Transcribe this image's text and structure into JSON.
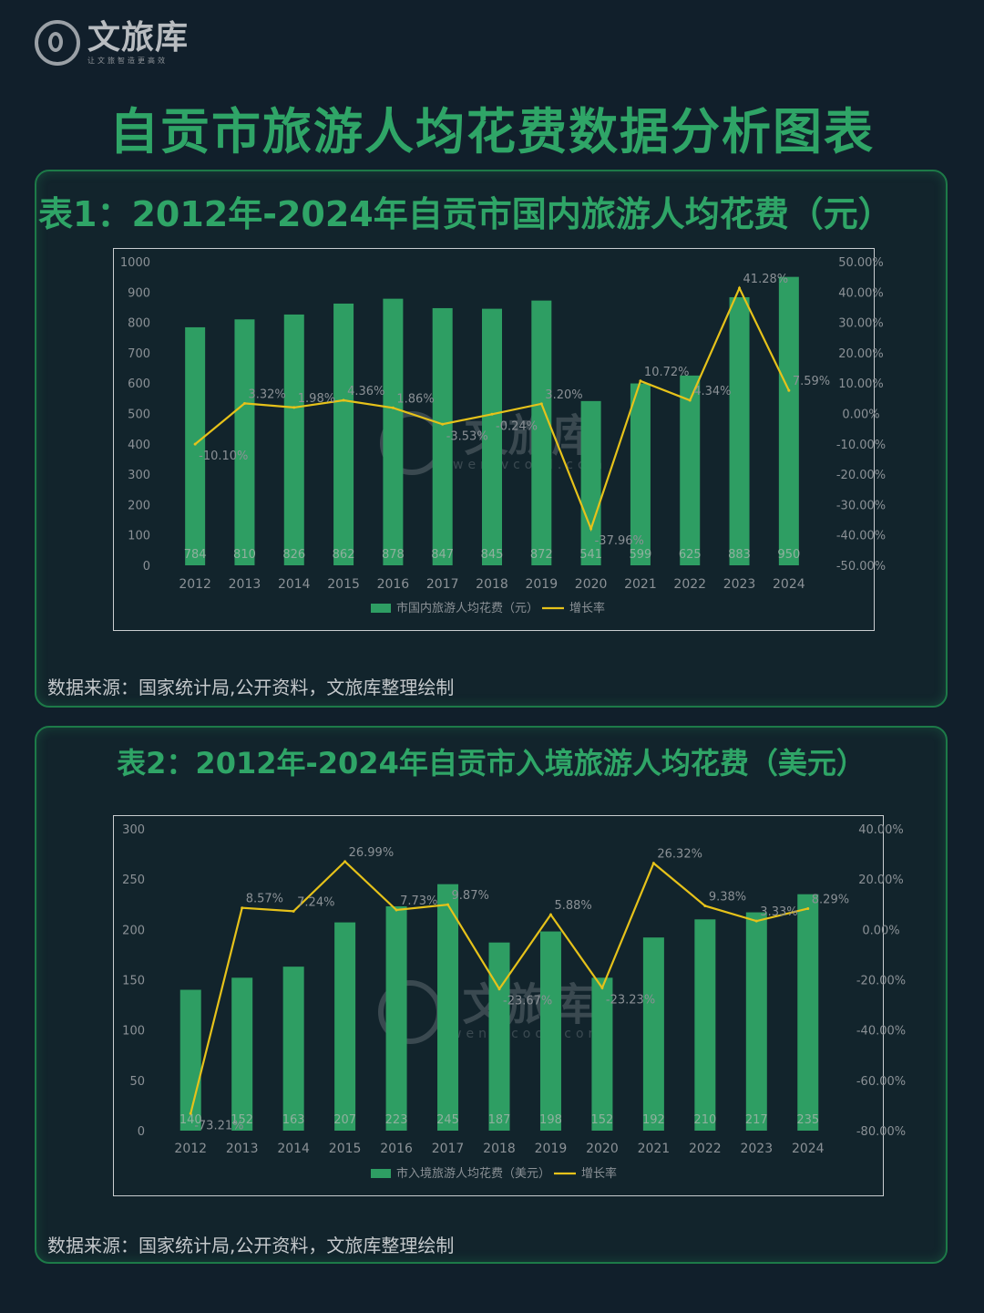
{
  "brand": {
    "name": "文旅库",
    "tagline": "让文旅智造更高效",
    "watermark_name": "文旅库",
    "watermark_url": "wenlvcool.com"
  },
  "page_title": "自贡市旅游人均花费数据分析图表",
  "colors": {
    "background": "#111f2b",
    "accent": "#2fa567",
    "bar": "#2e9e63",
    "line": "#e6c21a",
    "text_muted": "#8b9196"
  },
  "charts": [
    {
      "title": "表1：2012年-2024年自贡市国内旅游人均花费（元）",
      "source": "数据来源：国家统计局,公开资料，文旅库整理绘制",
      "chart_data": {
        "type": "bar",
        "categories": [
          "2012",
          "2013",
          "2014",
          "2015",
          "2016",
          "2017",
          "2018",
          "2019",
          "2020",
          "2021",
          "2022",
          "2023",
          "2024"
        ],
        "series": [
          {
            "name": "市国内旅游人均花费（元）",
            "type": "bar",
            "axis": "left",
            "values": [
              784,
              810,
              826,
              862,
              878,
              847,
              845,
              872,
              541,
              599,
              625,
              883,
              950
            ],
            "labels": [
              "784",
              "810",
              "826",
              "862",
              "878",
              "847",
              "845",
              "872",
              "541",
              "599",
              "625",
              "883",
              "950"
            ]
          },
          {
            "name": "增长率",
            "type": "line",
            "axis": "right",
            "values": [
              -10.1,
              3.32,
              1.98,
              4.36,
              1.86,
              -3.53,
              -0.24,
              3.2,
              -37.96,
              10.72,
              4.34,
              41.28,
              7.59
            ],
            "labels": [
              "-10.10%",
              "3.32%",
              "1.98%",
              "4.36%",
              "1.86%",
              "-3.53%",
              "-0.24%",
              "3.20%",
              "-37.96%",
              "10.72%",
              "4.34%",
              "41.28%",
              "7.59%"
            ]
          }
        ],
        "y_left": {
          "min": 0,
          "max": 1000,
          "ticks": [
            "0",
            "100",
            "200",
            "300",
            "400",
            "500",
            "600",
            "700",
            "800",
            "900",
            "1000"
          ]
        },
        "y_right": {
          "min": -50,
          "max": 50,
          "ticks": [
            "-50.00%",
            "-40.00%",
            "-30.00%",
            "-20.00%",
            "-10.00%",
            "0.00%",
            "10.00%",
            "20.00%",
            "30.00%",
            "40.00%",
            "50.00%"
          ]
        },
        "grid": false,
        "legend": "bottom"
      }
    },
    {
      "title": "表2：2012年-2024年自贡市入境旅游人均花费（美元）",
      "source": "数据来源：国家统计局,公开资料，文旅库整理绘制",
      "chart_data": {
        "type": "bar",
        "categories": [
          "2012",
          "2013",
          "2014",
          "2015",
          "2016",
          "2017",
          "2018",
          "2019",
          "2020",
          "2021",
          "2022",
          "2023",
          "2024"
        ],
        "series": [
          {
            "name": "市入境旅游人均花费（美元）",
            "type": "bar",
            "axis": "left",
            "values": [
              140,
              152,
              163,
              207,
              223,
              245,
              187,
              198,
              152,
              192,
              210,
              217,
              235
            ],
            "labels": [
              "140",
              "152",
              "163",
              "207",
              "223",
              "245",
              "187",
              "198",
              "152",
              "192",
              "210",
              "217",
              "235"
            ]
          },
          {
            "name": "增长率",
            "type": "line",
            "axis": "right",
            "values": [
              -73.21,
              8.57,
              7.24,
              26.99,
              7.73,
              9.87,
              -23.67,
              5.88,
              -23.23,
              26.32,
              9.38,
              3.33,
              8.29
            ],
            "labels": [
              "-73.21%",
              "8.57%",
              "7.24%",
              "26.99%",
              "7.73%",
              "9.87%",
              "-23.67%",
              "5.88%",
              "-23.23%",
              "26.32%",
              "9.38%",
              "3.33%",
              "8.29%"
            ]
          }
        ],
        "y_left": {
          "min": 0,
          "max": 300,
          "ticks": [
            "0",
            "50",
            "100",
            "150",
            "200",
            "250",
            "300"
          ]
        },
        "y_right": {
          "min": -80,
          "max": 40,
          "ticks": [
            "-80.00%",
            "-60.00%",
            "-40.00%",
            "-20.00%",
            "0.00%",
            "20.00%",
            "40.00%"
          ]
        },
        "grid": false,
        "legend": "bottom"
      }
    }
  ]
}
